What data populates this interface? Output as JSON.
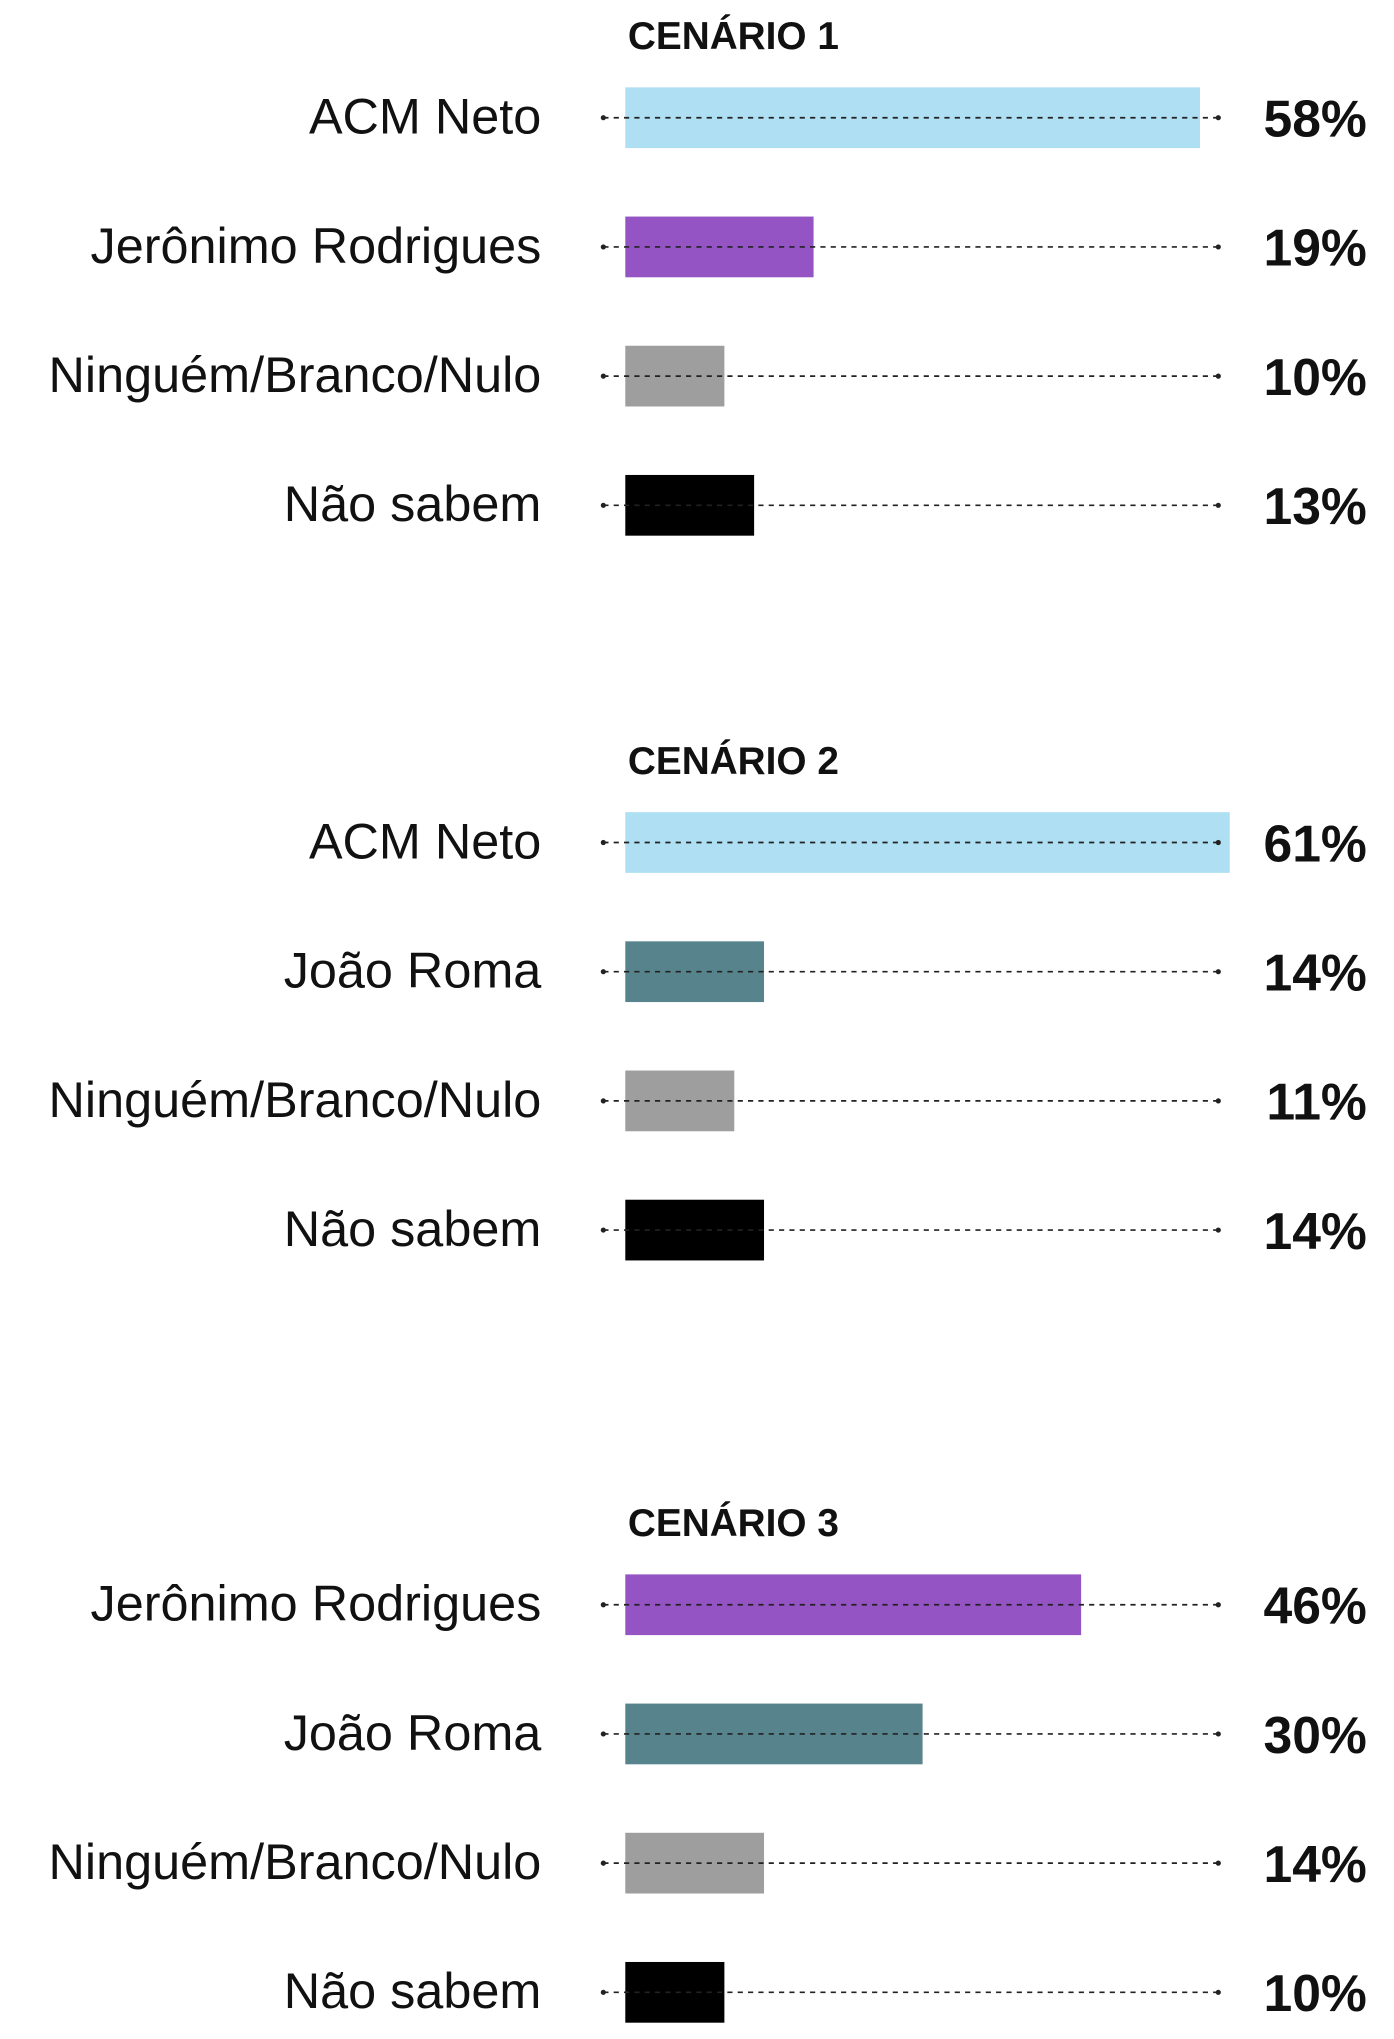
{
  "chart_data": [
    {
      "type": "bar",
      "title": "CENÁRIO 1",
      "categories": [
        "ACM Neto",
        "Jerônimo Rodrigues",
        "Ninguém/Branco/Nulo",
        "Não sabem"
      ],
      "values": [
        58,
        19,
        10,
        13
      ],
      "value_labels": [
        "58%",
        "19%",
        "10%",
        "13%"
      ],
      "colors": [
        "#aedff2",
        "#9454c4",
        "#9e9e9e",
        "#000000"
      ]
    },
    {
      "type": "bar",
      "title": "CENÁRIO 2",
      "categories": [
        "ACM Neto",
        "João Roma",
        "Ninguém/Branco/Nulo",
        "Não sabem"
      ],
      "values": [
        61,
        14,
        11,
        14
      ],
      "value_labels": [
        "61%",
        "14%",
        "11%",
        "14%"
      ],
      "colors": [
        "#aedff2",
        "#57838c",
        "#9e9e9e",
        "#000000"
      ]
    },
    {
      "type": "bar",
      "title": "CENÁRIO 3",
      "categories": [
        "Jerônimo Rodrigues",
        "João Roma",
        "Ninguém/Branco/Nulo",
        "Não sabem"
      ],
      "values": [
        46,
        30,
        14,
        10
      ],
      "value_labels": [
        "46%",
        "30%",
        "14%",
        "10%"
      ],
      "colors": [
        "#9454c4",
        "#57838c",
        "#9e9e9e",
        "#000000"
      ]
    }
  ]
}
